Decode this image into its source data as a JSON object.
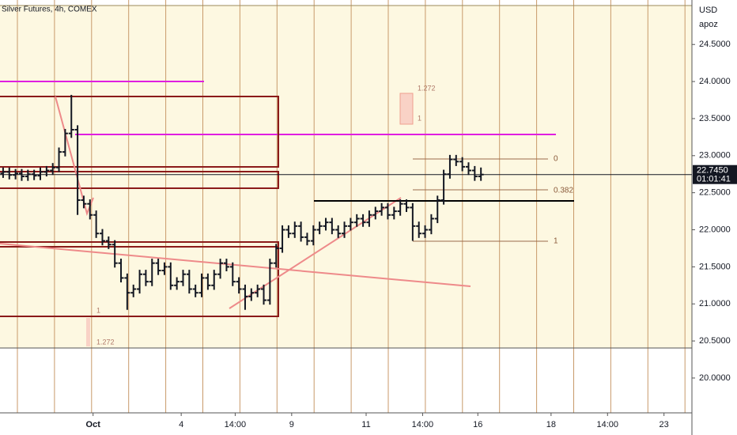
{
  "chart_data": {
    "type": "ohlc",
    "title": "Silver Futures, 4h, COMEX",
    "currency": "USD",
    "scale_mode": "apoz",
    "xlim": [
      -0.5,
      111
    ],
    "ylim": [
      19.53,
      25.1
    ],
    "xticks": [
      {
        "value": 14.5,
        "label": "Oct"
      },
      {
        "value": 28.7,
        "label": "4"
      },
      {
        "value": 37.4,
        "label": "14:00"
      },
      {
        "value": 46.5,
        "label": "9"
      },
      {
        "value": 58.5,
        "label": "11"
      },
      {
        "value": 67.6,
        "label": "14:00"
      },
      {
        "value": 76.5,
        "label": "16"
      },
      {
        "value": 88.3,
        "label": "18"
      },
      {
        "value": 97.4,
        "label": "14:00"
      },
      {
        "value": 106.5,
        "label": "23"
      }
    ],
    "yticks": [
      {
        "value": 20,
        "label": "20.0000"
      },
      {
        "value": 20.5,
        "label": "20.5000"
      },
      {
        "value": 21,
        "label": "21.0000"
      },
      {
        "value": 21.5,
        "label": "21.5000"
      },
      {
        "value": 22,
        "label": "22.0000"
      },
      {
        "value": 22.5,
        "label": "22.5000"
      },
      {
        "value": 23,
        "label": "23.0000"
      },
      {
        "value": 23.5,
        "label": "23.5000"
      },
      {
        "value": 24,
        "label": "24.0000"
      },
      {
        "value": 24.5,
        "label": "24.5000"
      }
    ],
    "color": "#131722",
    "last_price": {
      "value": 22.745,
      "label": "22.7450",
      "countdown": "01:01:41"
    },
    "annotations": [
      "0",
      "0.382",
      "1",
      "1.272",
      "1",
      "1",
      "1.272"
    ],
    "open": [
      22.76,
      22.78,
      22.74,
      22.76,
      22.72,
      22.75,
      22.73,
      22.78,
      22.8,
      22.84,
      23.05,
      23.3,
      23.35,
      22.4,
      22.35,
      22.2,
      21.95,
      21.85,
      21.8,
      21.55,
      21.35,
      21.15,
      21.2,
      21.4,
      21.3,
      21.55,
      21.45,
      21.5,
      21.25,
      21.3,
      21.4,
      21.2,
      21.15,
      21.35,
      21.25,
      21.4,
      21.55,
      21.5,
      21.3,
      21.2,
      21.1,
      21.15,
      21.2,
      21.05,
      21.55,
      21.75,
      22.0,
      21.95,
      22.05,
      21.9,
      21.85,
      22.0,
      22.05,
      22.1,
      22.0,
      21.95,
      22.05,
      22.1,
      22.15,
      22.1,
      22.2,
      22.25,
      22.3,
      22.2,
      22.25,
      22.35,
      22.3,
      22.05,
      21.95,
      22.0,
      22.15,
      22.4,
      22.75,
      22.95,
      22.92,
      22.85,
      22.8,
      22.72
    ],
    "high": [
      22.84,
      22.84,
      22.82,
      22.82,
      22.81,
      22.81,
      22.84,
      22.86,
      22.9,
      23.11,
      23.36,
      23.82,
      23.41,
      22.46,
      22.41,
      22.26,
      22.01,
      21.91,
      21.86,
      21.61,
      21.41,
      21.26,
      21.46,
      21.46,
      21.61,
      21.61,
      21.56,
      21.56,
      21.36,
      21.46,
      21.46,
      21.26,
      21.41,
      21.41,
      21.46,
      21.61,
      21.61,
      21.56,
      21.36,
      21.26,
      21.21,
      21.26,
      21.26,
      21.61,
      21.81,
      22.06,
      22.06,
      22.11,
      22.11,
      21.96,
      22.06,
      22.11,
      22.16,
      22.16,
      22.06,
      22.11,
      22.16,
      22.21,
      22.21,
      22.26,
      22.31,
      22.36,
      22.36,
      22.31,
      22.41,
      22.41,
      22.36,
      22.11,
      22.06,
      22.21,
      22.46,
      22.81,
      23.01,
      23.01,
      22.98,
      22.91,
      22.86,
      22.84
    ],
    "low": [
      22.7,
      22.68,
      22.68,
      22.66,
      22.66,
      22.67,
      22.67,
      22.72,
      22.74,
      22.78,
      22.99,
      23.24,
      22.2,
      22.29,
      22.14,
      21.89,
      21.79,
      21.74,
      21.49,
      21.29,
      20.92,
      21.09,
      21.14,
      21.24,
      21.24,
      21.39,
      21.39,
      21.19,
      21.19,
      21.24,
      21.14,
      21.09,
      21.09,
      21.19,
      21.19,
      21.34,
      21.44,
      21.24,
      21.14,
      20.92,
      21.04,
      21.09,
      20.99,
      20.99,
      21.49,
      21.69,
      21.89,
      21.89,
      21.84,
      21.79,
      21.79,
      21.94,
      21.99,
      21.94,
      21.89,
      21.89,
      21.99,
      22.04,
      22.04,
      22.04,
      22.14,
      22.19,
      22.14,
      22.14,
      22.19,
      22.24,
      21.85,
      21.89,
      21.89,
      21.94,
      22.09,
      22.34,
      22.69,
      22.86,
      22.79,
      22.74,
      22.66,
      22.66
    ],
    "close": [
      22.78,
      22.74,
      22.76,
      22.72,
      22.75,
      22.73,
      22.78,
      22.8,
      22.84,
      23.05,
      23.3,
      23.35,
      22.4,
      22.35,
      22.2,
      21.95,
      21.85,
      21.8,
      21.55,
      21.35,
      21.15,
      21.2,
      21.4,
      21.3,
      21.55,
      21.45,
      21.5,
      21.25,
      21.3,
      21.4,
      21.2,
      21.15,
      21.35,
      21.25,
      21.4,
      21.55,
      21.5,
      21.3,
      21.2,
      21.1,
      21.15,
      21.2,
      21.05,
      21.55,
      21.75,
      22.0,
      21.95,
      22.05,
      21.9,
      21.85,
      22.0,
      22.05,
      22.1,
      22.0,
      21.95,
      22.05,
      22.1,
      22.15,
      22.1,
      22.2,
      22.25,
      22.3,
      22.2,
      22.25,
      22.35,
      22.3,
      22.05,
      21.95,
      22.0,
      22.15,
      22.4,
      22.75,
      22.95,
      22.92,
      22.85,
      22.8,
      22.72,
      22.745
    ]
  }
}
